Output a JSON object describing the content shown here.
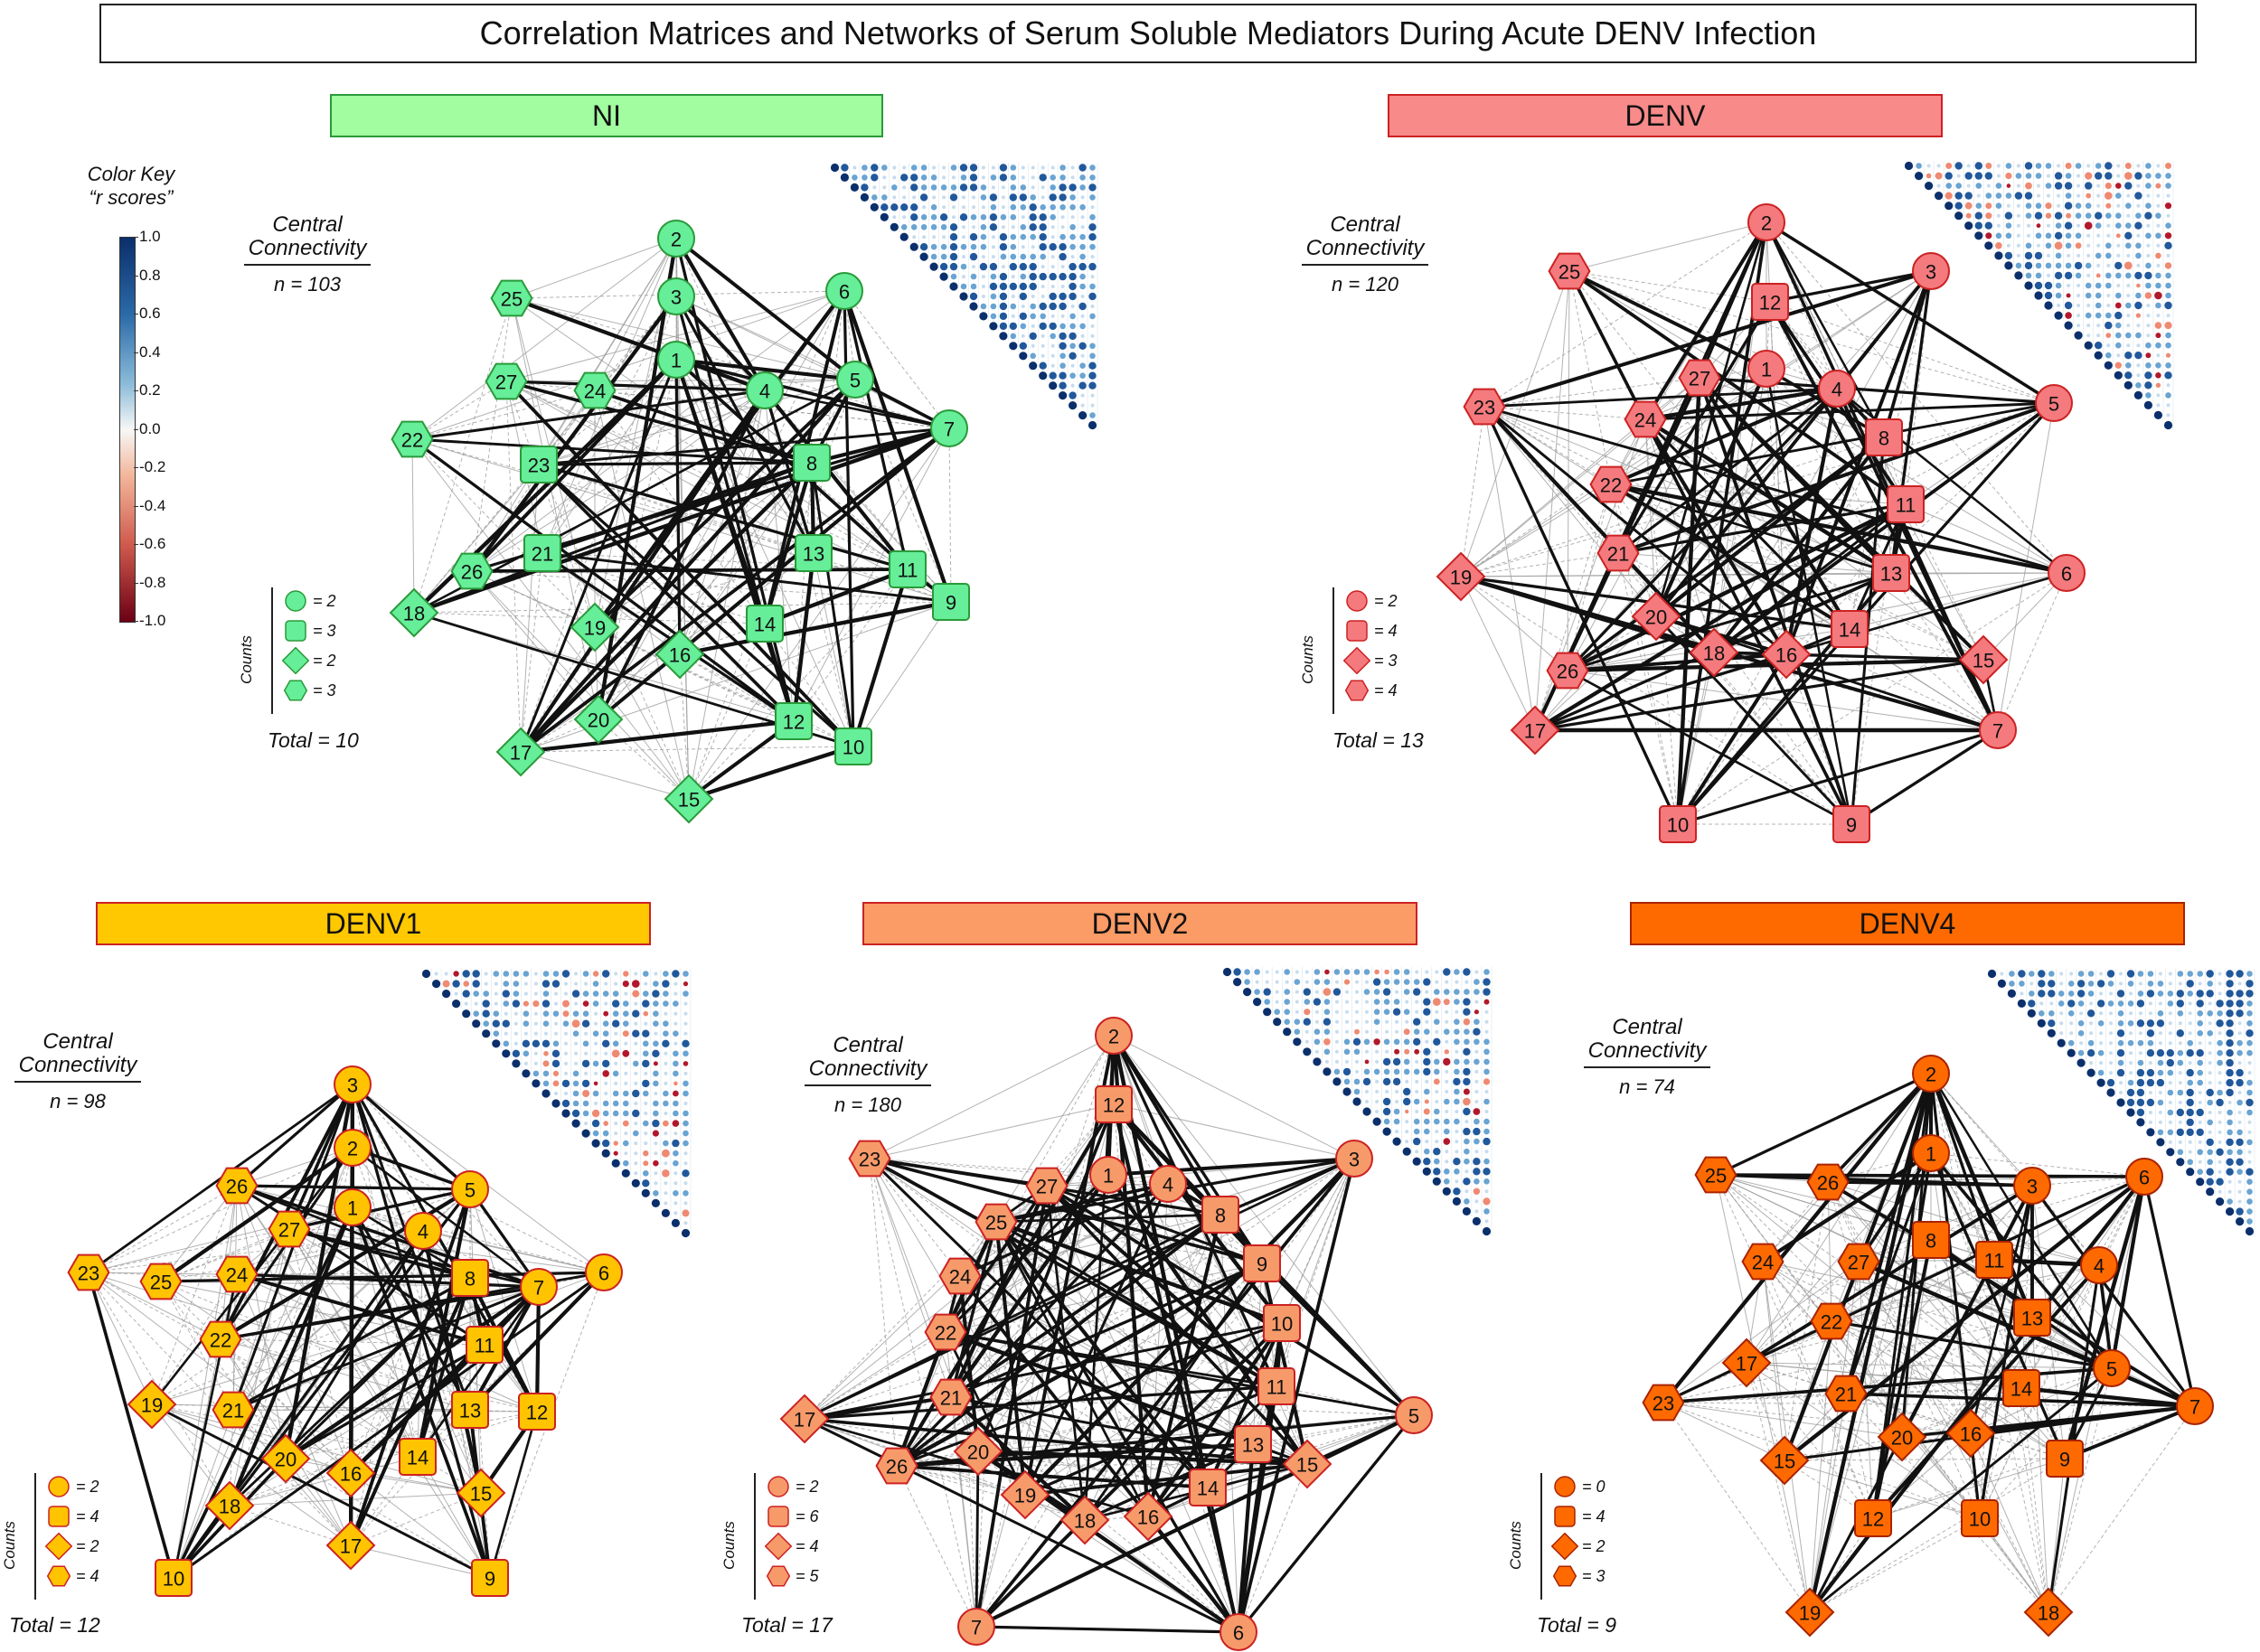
{
  "title": "Correlation Matrices and Networks of Serum Soluble Mediators During Acute DENV Infection",
  "color_key": {
    "title_line1": "Color Key",
    "title_line2": "“r scores”",
    "ticks": [
      "1.0",
      "0.8",
      "0.6",
      "0.4",
      "0.2",
      "0.0",
      "-0.2",
      "-0.4",
      "-0.6",
      "-0.8",
      "-1.0"
    ]
  },
  "cc_label_line1": "Central",
  "cc_label_line2": "Connectivity",
  "counts_label": "Counts",
  "panels": [
    {
      "id": "ni",
      "name": "NI",
      "color": "#66ee99",
      "banner": "#a2fca0",
      "stroke": "#2a9a3a",
      "n": "n = 103",
      "counts": [
        "= 2",
        "= 3",
        "= 2",
        "= 3"
      ],
      "total": "Total = 10",
      "nodes": [
        [
          "1",
          "circle"
        ],
        [
          "2",
          "circle"
        ],
        [
          "3",
          "circle"
        ],
        [
          "4",
          "circle"
        ],
        [
          "5",
          "circle"
        ],
        [
          "6",
          "circle"
        ],
        [
          "7",
          "circle"
        ],
        [
          "8",
          "square"
        ],
        [
          "9",
          "square"
        ],
        [
          "10",
          "square"
        ],
        [
          "11",
          "square"
        ],
        [
          "12",
          "square"
        ],
        [
          "13",
          "square"
        ],
        [
          "14",
          "square"
        ],
        [
          "15",
          "diamond"
        ],
        [
          "16",
          "diamond"
        ],
        [
          "17",
          "diamond"
        ],
        [
          "18",
          "diamond"
        ],
        [
          "19",
          "diamond"
        ],
        [
          "20",
          "diamond"
        ],
        [
          "21",
          "square"
        ],
        [
          "22",
          "hexagon"
        ],
        [
          "23",
          "square"
        ],
        [
          "24",
          "hexagon"
        ],
        [
          "25",
          "hexagon"
        ],
        [
          "26",
          "hexagon"
        ],
        [
          "27",
          "hexagon"
        ]
      ]
    },
    {
      "id": "denv",
      "name": "DENV",
      "color": "#f47a7e",
      "banner": "#f98a8a",
      "stroke": "#cc2222",
      "n": "n = 120",
      "counts": [
        "= 2",
        "= 4",
        "= 3",
        "= 4"
      ],
      "total": "Total = 13",
      "nodes": [
        [
          "1",
          "circle"
        ],
        [
          "2",
          "circle"
        ],
        [
          "3",
          "circle"
        ],
        [
          "4",
          "circle"
        ],
        [
          "5",
          "circle"
        ],
        [
          "6",
          "circle"
        ],
        [
          "7",
          "circle"
        ],
        [
          "8",
          "square"
        ],
        [
          "9",
          "square"
        ],
        [
          "10",
          "square"
        ],
        [
          "11",
          "square"
        ],
        [
          "12",
          "square"
        ],
        [
          "13",
          "square"
        ],
        [
          "14",
          "square"
        ],
        [
          "15",
          "diamond"
        ],
        [
          "16",
          "diamond"
        ],
        [
          "17",
          "diamond"
        ],
        [
          "18",
          "diamond"
        ],
        [
          "19",
          "diamond"
        ],
        [
          "20",
          "diamond"
        ],
        [
          "21",
          "hexagon"
        ],
        [
          "22",
          "hexagon"
        ],
        [
          "23",
          "hexagon"
        ],
        [
          "24",
          "hexagon"
        ],
        [
          "25",
          "hexagon"
        ],
        [
          "26",
          "hexagon"
        ],
        [
          "27",
          "hexagon"
        ]
      ]
    },
    {
      "id": "denv1",
      "name": "DENV1",
      "color": "#ffc300",
      "banner": "#ffc800",
      "stroke": "#cc2222",
      "n": "n = 98",
      "counts": [
        "= 2",
        "= 4",
        "= 2",
        "= 4"
      ],
      "total": "Total = 12",
      "nodes": [
        [
          "1",
          "circle"
        ],
        [
          "2",
          "circle"
        ],
        [
          "3",
          "circle"
        ],
        [
          "4",
          "circle"
        ],
        [
          "5",
          "circle"
        ],
        [
          "6",
          "circle"
        ],
        [
          "7",
          "circle"
        ],
        [
          "8",
          "square"
        ],
        [
          "9",
          "square"
        ],
        [
          "10",
          "square"
        ],
        [
          "11",
          "square"
        ],
        [
          "12",
          "square"
        ],
        [
          "13",
          "square"
        ],
        [
          "14",
          "square"
        ],
        [
          "15",
          "diamond"
        ],
        [
          "16",
          "diamond"
        ],
        [
          "17",
          "diamond"
        ],
        [
          "18",
          "diamond"
        ],
        [
          "19",
          "diamond"
        ],
        [
          "20",
          "diamond"
        ],
        [
          "21",
          "hexagon"
        ],
        [
          "22",
          "hexagon"
        ],
        [
          "23",
          "hexagon"
        ],
        [
          "24",
          "hexagon"
        ],
        [
          "25",
          "hexagon"
        ],
        [
          "26",
          "hexagon"
        ],
        [
          "27",
          "hexagon"
        ]
      ]
    },
    {
      "id": "denv2",
      "name": "DENV2",
      "color": "#f79a6a",
      "banner": "#fb9b66",
      "stroke": "#cc2222",
      "n": "n = 180",
      "counts": [
        "= 2",
        "= 6",
        "= 4",
        "= 5"
      ],
      "total": "Total = 17",
      "nodes": [
        [
          "1",
          "circle"
        ],
        [
          "2",
          "circle"
        ],
        [
          "3",
          "circle"
        ],
        [
          "4",
          "circle"
        ],
        [
          "5",
          "circle"
        ],
        [
          "6",
          "circle"
        ],
        [
          "7",
          "circle"
        ],
        [
          "8",
          "square"
        ],
        [
          "9",
          "square"
        ],
        [
          "10",
          "square"
        ],
        [
          "11",
          "square"
        ],
        [
          "12",
          "square"
        ],
        [
          "13",
          "square"
        ],
        [
          "14",
          "square"
        ],
        [
          "15",
          "diamond"
        ],
        [
          "16",
          "diamond"
        ],
        [
          "17",
          "diamond"
        ],
        [
          "18",
          "diamond"
        ],
        [
          "19",
          "diamond"
        ],
        [
          "20",
          "diamond"
        ],
        [
          "21",
          "hexagon"
        ],
        [
          "22",
          "hexagon"
        ],
        [
          "23",
          "hexagon"
        ],
        [
          "24",
          "hexagon"
        ],
        [
          "25",
          "hexagon"
        ],
        [
          "26",
          "hexagon"
        ],
        [
          "27",
          "hexagon"
        ]
      ]
    },
    {
      "id": "denv4",
      "name": "DENV4",
      "color": "#ff6a00",
      "banner": "#ff6a00",
      "stroke": "#aa2200",
      "n": "n = 74",
      "counts": [
        "= 0",
        "= 4",
        "= 2",
        "= 3"
      ],
      "total": "Total = 9",
      "nodes": [
        [
          "1",
          "circle"
        ],
        [
          "2",
          "circle"
        ],
        [
          "3",
          "circle"
        ],
        [
          "4",
          "circle"
        ],
        [
          "5",
          "circle"
        ],
        [
          "6",
          "circle"
        ],
        [
          "7",
          "circle"
        ],
        [
          "8",
          "square"
        ],
        [
          "9",
          "square"
        ],
        [
          "10",
          "square"
        ],
        [
          "11",
          "square"
        ],
        [
          "12",
          "square"
        ],
        [
          "13",
          "square"
        ],
        [
          "14",
          "square"
        ],
        [
          "15",
          "diamond"
        ],
        [
          "16",
          "diamond"
        ],
        [
          "17",
          "diamond"
        ],
        [
          "18",
          "diamond"
        ],
        [
          "19",
          "diamond"
        ],
        [
          "20",
          "diamond"
        ],
        [
          "21",
          "hexagon"
        ],
        [
          "22",
          "hexagon"
        ],
        [
          "23",
          "hexagon"
        ],
        [
          "24",
          "hexagon"
        ],
        [
          "25",
          "hexagon"
        ],
        [
          "26",
          "hexagon"
        ],
        [
          "27",
          "hexagon"
        ]
      ]
    }
  ]
}
